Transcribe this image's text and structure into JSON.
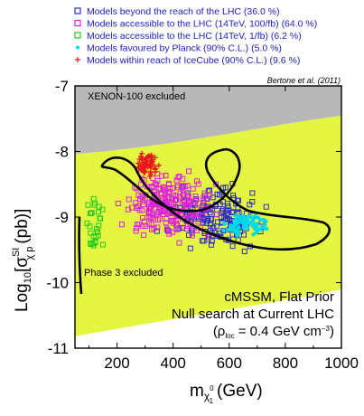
{
  "chart_data": {
    "type": "scatter",
    "xlim": [
      50,
      1000
    ],
    "ylim": [
      -11,
      -7
    ],
    "x_ticks": [
      "200",
      "400",
      "600",
      "800",
      "1000"
    ],
    "y_ticks": [
      "-7",
      "-8",
      "-9",
      "-10",
      "-11"
    ],
    "xlabel": "m",
    "xlabel_sub": "χ",
    "xlabel_sub2": "1",
    "xlabel_sup": "0",
    "xlabel_unit": "(GeV)",
    "ylabel_prefix": "Log",
    "ylabel_sub": "10",
    "ylabel_var": "[σ",
    "ylabel_var_sup": "SI",
    "ylabel_var_sub": "χ p",
    "ylabel_unit": "(pb)]",
    "citation": "Bertone et al. (2011)",
    "excluded_labels": [
      "XENON-100 excluded",
      "Phase 3 excluded"
    ],
    "annotation": {
      "line1": "cMSSM, Flat Prior",
      "line2": "Null search at Current LHC",
      "line3_prefix": "(ρ",
      "line3_sub": "loc",
      "line3_value": "= 0.4 GeV cm",
      "line3_sup": "−3",
      "line3_end": ")"
    },
    "colors": {
      "beyond": "#2c2cc8",
      "accessible100": "#e020e0",
      "accessible1": "#22cc22",
      "planck": "#00d8f0",
      "icecube": "#e81818",
      "xenon_region": "#b8b8b8",
      "phase3_region": "#e4f542",
      "contour": "#000000"
    },
    "series": [
      {
        "name": "Models beyond the reach of the LHC (36.0 %)",
        "key": "beyond",
        "marker": "square",
        "n": 160,
        "x_range": [
          300,
          800
        ],
        "y_range": [
          -9.6,
          -8.3
        ],
        "x_center": 550,
        "y_center": -9.0
      },
      {
        "name": "Models accessible to the LHC (14TeV, 100/fb) (64.0 %)",
        "key": "accessible100",
        "marker": "square",
        "n": 230,
        "x_range": [
          160,
          600
        ],
        "y_range": [
          -9.5,
          -8.1
        ],
        "x_center": 380,
        "y_center": -8.85
      },
      {
        "name": "Models accessible to the LHC (14TeV, 1/fb) (6.2 %)",
        "key": "accessible1",
        "marker": "square",
        "n": 28,
        "x_range": [
          60,
          180
        ],
        "y_range": [
          -9.8,
          -8.4
        ],
        "x_center": 120,
        "y_center": -9.1
      },
      {
        "name": "Models favoured by Planck (90% C.L.) (5.0 %)",
        "key": "planck",
        "marker": "dot",
        "n": 90,
        "x_range": [
          560,
          760
        ],
        "y_range": [
          -9.35,
          -8.85
        ],
        "x_center": 660,
        "y_center": -9.1
      },
      {
        "name": "Models within reach of IceCube (90% C.L.) (9.6 %)",
        "key": "icecube",
        "marker": "plus",
        "n": 70,
        "x_range": [
          250,
          360
        ],
        "y_range": [
          -8.5,
          -7.9
        ],
        "x_center": 310,
        "y_center": -8.2
      }
    ]
  }
}
